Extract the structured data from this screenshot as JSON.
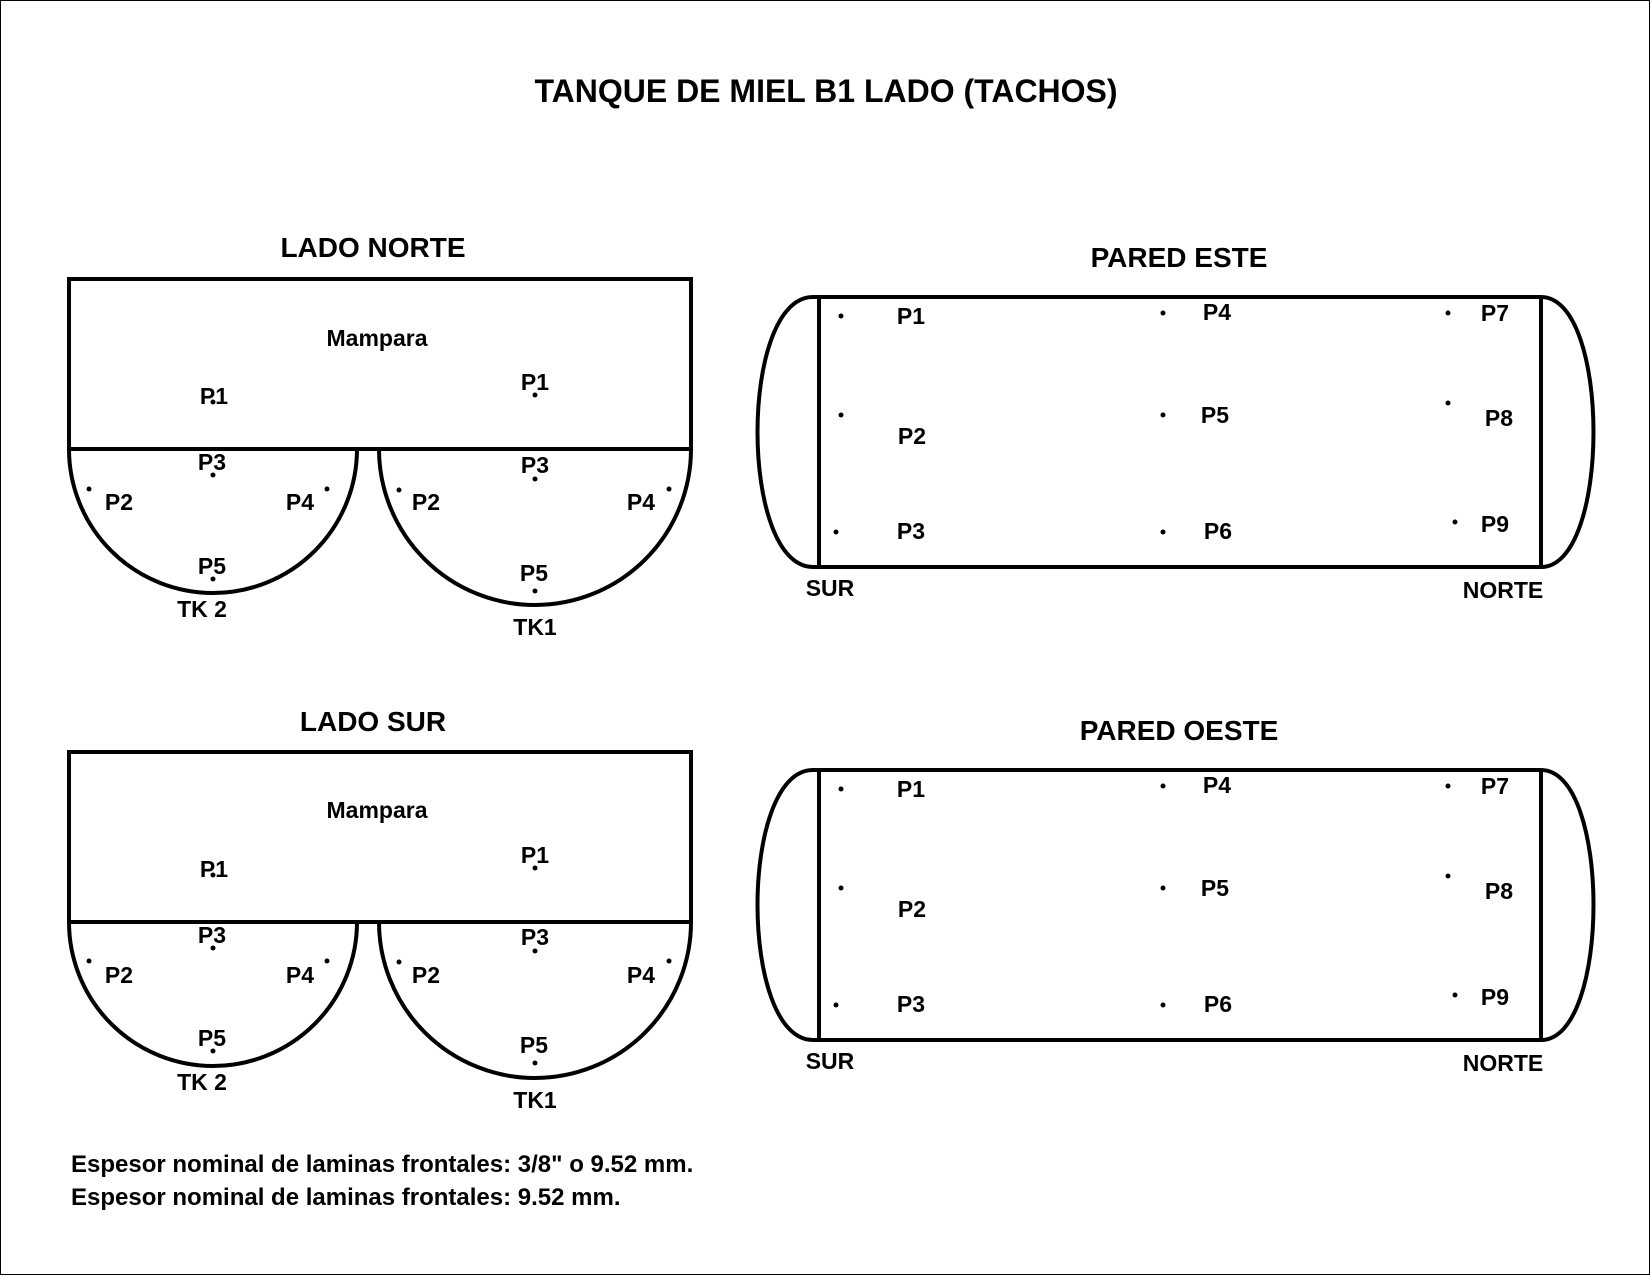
{
  "title": "TANQUE DE MIEL B1 LADO (TACHOS)",
  "lado_norte": {
    "title": "LADO NORTE",
    "mampara": "Mampara",
    "left_tank": {
      "name": "TK 2",
      "p1": "P1",
      "p2": "P2",
      "p3": "P3",
      "p4": "P4",
      "p5": "P5"
    },
    "right_tank": {
      "name": "TK1",
      "p1": "P1",
      "p2": "P2",
      "p3": "P3",
      "p4": "P4",
      "p5": "P5"
    }
  },
  "lado_sur": {
    "title": "LADO SUR",
    "mampara": "Mampara",
    "left_tank": {
      "name": "TK 2",
      "p1": "P1",
      "p2": "P2",
      "p3": "P3",
      "p4": "P4",
      "p5": "P5"
    },
    "right_tank": {
      "name": "TK1",
      "p1": "P1",
      "p2": "P2",
      "p3": "P3",
      "p4": "P4",
      "p5": "P5"
    }
  },
  "pared_este": {
    "title": "PARED ESTE",
    "points": [
      "P1",
      "P2",
      "P3",
      "P4",
      "P5",
      "P6",
      "P7",
      "P8",
      "P9"
    ],
    "left_end": "SUR",
    "right_end": "NORTE"
  },
  "pared_oeste": {
    "title": "PARED OESTE",
    "points": [
      "P1",
      "P2",
      "P3",
      "P4",
      "P5",
      "P6",
      "P7",
      "P8",
      "P9"
    ],
    "left_end": "SUR",
    "right_end": "NORTE"
  },
  "notes": [
    "Espesor nominal de laminas frontales: 3/8\" o 9.52 mm.",
    "Espesor nominal de laminas frontales: 9.52 mm."
  ]
}
